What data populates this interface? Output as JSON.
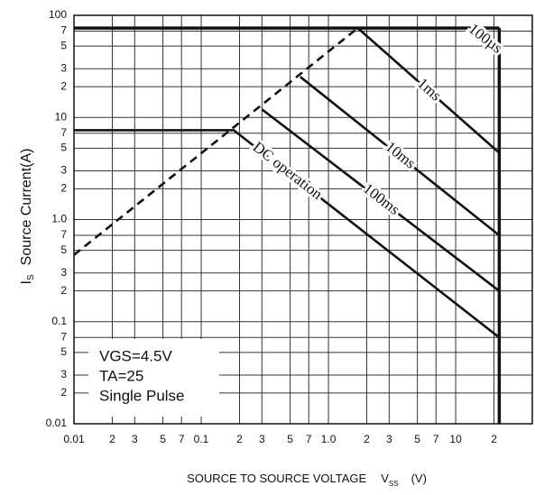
{
  "chart_data": {
    "type": "line",
    "y_label_symbol": "I",
    "y_label_sub": "S",
    "y_label": "Source Current(A)",
    "x_label": "SOURCE TO SOURCE VOLTAGE",
    "x_label_symbol": "V",
    "x_label_sub": "SS",
    "x_label_unit": "(V)",
    "log_x": true,
    "log_y": true,
    "grid": true,
    "color": "#111111",
    "xlim": [
      0.01,
      40
    ],
    "ylim": [
      0.01,
      100
    ],
    "xticks": [
      0.01,
      {
        "value": 0.02,
        "label": "2"
      },
      {
        "value": 0.03,
        "label": "3"
      },
      {
        "value": 0.05,
        "label": "5"
      },
      {
        "value": 0.07,
        "label": "7"
      },
      0.1,
      {
        "value": 0.2,
        "label": "2"
      },
      {
        "value": 0.3,
        "label": "3"
      },
      {
        "value": 0.5,
        "label": "5"
      },
      {
        "value": 0.7,
        "label": "7"
      },
      {
        "value": 1,
        "label": "1.0"
      },
      {
        "value": 2,
        "label": "2"
      },
      {
        "value": 3,
        "label": "3"
      },
      {
        "value": 5,
        "label": "5"
      },
      {
        "value": 7,
        "label": "7"
      },
      10,
      {
        "value": 20,
        "label": "2"
      }
    ],
    "yticks": [
      0.01,
      {
        "value": 0.02,
        "label": "2"
      },
      {
        "value": 0.03,
        "label": "3"
      },
      {
        "value": 0.05,
        "label": "5"
      },
      {
        "value": 0.07,
        "label": "7"
      },
      0.1,
      {
        "value": 0.2,
        "label": "2"
      },
      {
        "value": 0.3,
        "label": "3"
      },
      {
        "value": 0.5,
        "label": "5"
      },
      {
        "value": 0.7,
        "label": "7"
      },
      {
        "value": 1,
        "label": "1.0"
      },
      {
        "value": 2,
        "label": "2"
      },
      {
        "value": 3,
        "label": "3"
      },
      {
        "value": 5,
        "label": "5"
      },
      {
        "value": 7,
        "label": "7"
      },
      10,
      {
        "value": 20,
        "label": "2"
      },
      {
        "value": 30,
        "label": "3"
      },
      {
        "value": 50,
        "label": "5"
      },
      {
        "value": 70,
        "label": "7"
      },
      100
    ],
    "series": [
      {
        "x": [
          0.01,
          22
        ],
        "values": [
          75,
          75
        ],
        "style": "limit"
      },
      {
        "x": [
          22,
          22
        ],
        "values": [
          75,
          0.01
        ],
        "style": "limit"
      },
      {
        "x": [
          0.01,
          1.7
        ],
        "values": [
          0.45,
          75
        ],
        "style": "dashed"
      },
      {
        "name": "DC operation",
        "x": [
          0.01,
          0.18,
          22
        ],
        "values": [
          7.5,
          7.5,
          0.07
        ]
      },
      {
        "name": "100ms",
        "x": [
          0.3,
          22
        ],
        "values": [
          12,
          0.2
        ]
      },
      {
        "name": "10ms",
        "x": [
          0.6,
          22
        ],
        "values": [
          25,
          0.7
        ]
      },
      {
        "name": "1ms",
        "x": [
          1.7,
          22
        ],
        "values": [
          75,
          4.5
        ]
      },
      {
        "name": "100µs",
        "x": [
          13,
          22
        ],
        "values": [
          75,
          45
        ]
      }
    ],
    "notes": [
      "VGS=4.5V",
      "TA=25",
      "Single Pulse"
    ]
  }
}
